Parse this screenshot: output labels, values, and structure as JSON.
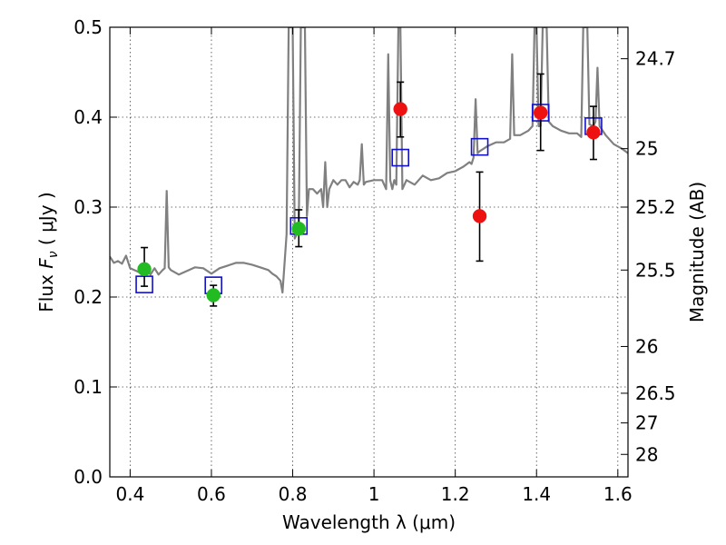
{
  "chart_data": {
    "type": "scatter",
    "xlabel": "Wavelength  λ (μm)",
    "ylabel": "Flux  F_ν  ( μJy )",
    "ylabel_parts": {
      "prefix": "Flux  ",
      "symbol": "F",
      "subscript": "ν",
      "suffix": "  ( μJy )"
    },
    "y2label": "Magnitude (AB)",
    "xlim": [
      0.35,
      1.625
    ],
    "ylim": [
      0.0,
      0.5
    ],
    "grid": true,
    "x_ticks": [
      {
        "value": 0.4,
        "label": "0.4"
      },
      {
        "value": 0.6,
        "label": "0.6"
      },
      {
        "value": 0.8,
        "label": "0.8"
      },
      {
        "value": 1.0,
        "label": "1"
      },
      {
        "value": 1.2,
        "label": "1.2"
      },
      {
        "value": 1.4,
        "label": "1.4"
      },
      {
        "value": 1.6,
        "label": "1.6"
      }
    ],
    "y_ticks": [
      {
        "value": 0.0,
        "label": "0.0"
      },
      {
        "value": 0.1,
        "label": "0.1"
      },
      {
        "value": 0.2,
        "label": "0.2"
      },
      {
        "value": 0.3,
        "label": "0.3"
      },
      {
        "value": 0.4,
        "label": "0.4"
      },
      {
        "value": 0.5,
        "label": "0.5"
      }
    ],
    "y2_ticks": [
      {
        "flux": 0.465,
        "label": "24.7"
      },
      {
        "flux": 0.365,
        "label": "25"
      },
      {
        "flux": 0.3,
        "label": "25.2"
      },
      {
        "flux": 0.23,
        "label": "25.5"
      },
      {
        "flux": 0.145,
        "label": "26"
      },
      {
        "flux": 0.093,
        "label": "26.5"
      },
      {
        "flux": 0.06,
        "label": "27"
      },
      {
        "flux": 0.025,
        "label": "28"
      }
    ],
    "colors": {
      "model": "#808080",
      "green": "#22bb22",
      "red": "#ee1111",
      "box": "#1111cc"
    },
    "series": [
      {
        "kind": "line",
        "color": "#808080",
        "points": [
          [
            0.35,
            0.245
          ],
          [
            0.36,
            0.238
          ],
          [
            0.37,
            0.24
          ],
          [
            0.38,
            0.237
          ],
          [
            0.39,
            0.246
          ],
          [
            0.4,
            0.232
          ],
          [
            0.41,
            0.23
          ],
          [
            0.42,
            0.228
          ],
          [
            0.43,
            0.226
          ],
          [
            0.44,
            0.23
          ],
          [
            0.45,
            0.225
          ],
          [
            0.46,
            0.232
          ],
          [
            0.47,
            0.225
          ],
          [
            0.48,
            0.23
          ],
          [
            0.485,
            0.232
          ],
          [
            0.49,
            0.318
          ],
          [
            0.495,
            0.233
          ],
          [
            0.5,
            0.23
          ],
          [
            0.52,
            0.225
          ],
          [
            0.54,
            0.229
          ],
          [
            0.56,
            0.233
          ],
          [
            0.58,
            0.232
          ],
          [
            0.6,
            0.226
          ],
          [
            0.62,
            0.232
          ],
          [
            0.64,
            0.235
          ],
          [
            0.66,
            0.238
          ],
          [
            0.68,
            0.238
          ],
          [
            0.7,
            0.236
          ],
          [
            0.72,
            0.233
          ],
          [
            0.74,
            0.23
          ],
          [
            0.75,
            0.226
          ],
          [
            0.76,
            0.223
          ],
          [
            0.77,
            0.218
          ],
          [
            0.775,
            0.205
          ],
          [
            0.785,
            0.27
          ],
          [
            0.79,
            0.5
          ],
          [
            0.8,
            0.5
          ],
          [
            0.805,
            0.265
          ],
          [
            0.81,
            0.27
          ],
          [
            0.815,
            0.275
          ],
          [
            0.82,
            0.5
          ],
          [
            0.83,
            0.5
          ],
          [
            0.835,
            0.29
          ],
          [
            0.84,
            0.32
          ],
          [
            0.85,
            0.32
          ],
          [
            0.86,
            0.315
          ],
          [
            0.87,
            0.32
          ],
          [
            0.875,
            0.3
          ],
          [
            0.88,
            0.35
          ],
          [
            0.885,
            0.3
          ],
          [
            0.89,
            0.32
          ],
          [
            0.9,
            0.33
          ],
          [
            0.91,
            0.325
          ],
          [
            0.92,
            0.33
          ],
          [
            0.93,
            0.33
          ],
          [
            0.94,
            0.322
          ],
          [
            0.95,
            0.328
          ],
          [
            0.96,
            0.325
          ],
          [
            0.965,
            0.33
          ],
          [
            0.97,
            0.37
          ],
          [
            0.975,
            0.325
          ],
          [
            0.98,
            0.328
          ],
          [
            1.0,
            0.33
          ],
          [
            1.02,
            0.33
          ],
          [
            1.03,
            0.32
          ],
          [
            1.035,
            0.47
          ],
          [
            1.04,
            0.33
          ],
          [
            1.045,
            0.32
          ],
          [
            1.05,
            0.33
          ],
          [
            1.055,
            0.325
          ],
          [
            1.06,
            0.5
          ],
          [
            1.065,
            0.5
          ],
          [
            1.07,
            0.32
          ],
          [
            1.08,
            0.33
          ],
          [
            1.1,
            0.325
          ],
          [
            1.12,
            0.335
          ],
          [
            1.14,
            0.33
          ],
          [
            1.16,
            0.332
          ],
          [
            1.18,
            0.338
          ],
          [
            1.2,
            0.34
          ],
          [
            1.22,
            0.345
          ],
          [
            1.235,
            0.35
          ],
          [
            1.24,
            0.348
          ],
          [
            1.245,
            0.355
          ],
          [
            1.25,
            0.42
          ],
          [
            1.255,
            0.36
          ],
          [
            1.26,
            0.362
          ],
          [
            1.28,
            0.368
          ],
          [
            1.3,
            0.372
          ],
          [
            1.32,
            0.372
          ],
          [
            1.335,
            0.376
          ],
          [
            1.34,
            0.47
          ],
          [
            1.345,
            0.38
          ],
          [
            1.36,
            0.38
          ],
          [
            1.38,
            0.385
          ],
          [
            1.39,
            0.39
          ],
          [
            1.395,
            0.5
          ],
          [
            1.4,
            0.5
          ],
          [
            1.405,
            0.39
          ],
          [
            1.41,
            0.39
          ],
          [
            1.415,
            0.5
          ],
          [
            1.425,
            0.5
          ],
          [
            1.43,
            0.395
          ],
          [
            1.44,
            0.39
          ],
          [
            1.46,
            0.385
          ],
          [
            1.48,
            0.382
          ],
          [
            1.5,
            0.382
          ],
          [
            1.51,
            0.378
          ],
          [
            1.515,
            0.5
          ],
          [
            1.525,
            0.5
          ],
          [
            1.53,
            0.392
          ],
          [
            1.54,
            0.39
          ],
          [
            1.545,
            0.395
          ],
          [
            1.55,
            0.455
          ],
          [
            1.555,
            0.39
          ],
          [
            1.57,
            0.38
          ],
          [
            1.59,
            0.37
          ],
          [
            1.61,
            0.365
          ],
          [
            1.625,
            0.36
          ]
        ]
      },
      {
        "kind": "box",
        "color": "#1111cc",
        "points": [
          [
            0.435,
            0.214
          ],
          [
            0.605,
            0.213
          ],
          [
            0.815,
            0.279
          ],
          [
            1.065,
            0.355
          ],
          [
            1.26,
            0.367
          ],
          [
            1.41,
            0.405
          ],
          [
            1.54,
            0.39
          ]
        ]
      },
      {
        "kind": "circle",
        "color": "#22bb22",
        "points": [
          {
            "x": 0.435,
            "y": 0.231,
            "err_low": 0.212,
            "err_high": 0.255
          },
          {
            "x": 0.605,
            "y": 0.202,
            "err_low": 0.19,
            "err_high": 0.213
          },
          {
            "x": 0.815,
            "y": 0.276,
            "err_low": 0.256,
            "err_high": 0.297
          }
        ]
      },
      {
        "kind": "circle",
        "color": "#ee1111",
        "points": [
          {
            "x": 1.065,
            "y": 0.409,
            "err_low": 0.378,
            "err_high": 0.439
          },
          {
            "x": 1.26,
            "y": 0.29,
            "err_low": 0.24,
            "err_high": 0.339
          },
          {
            "x": 1.41,
            "y": 0.405,
            "err_low": 0.363,
            "err_high": 0.448
          },
          {
            "x": 1.54,
            "y": 0.383,
            "err_low": 0.353,
            "err_high": 0.412
          }
        ]
      }
    ]
  }
}
